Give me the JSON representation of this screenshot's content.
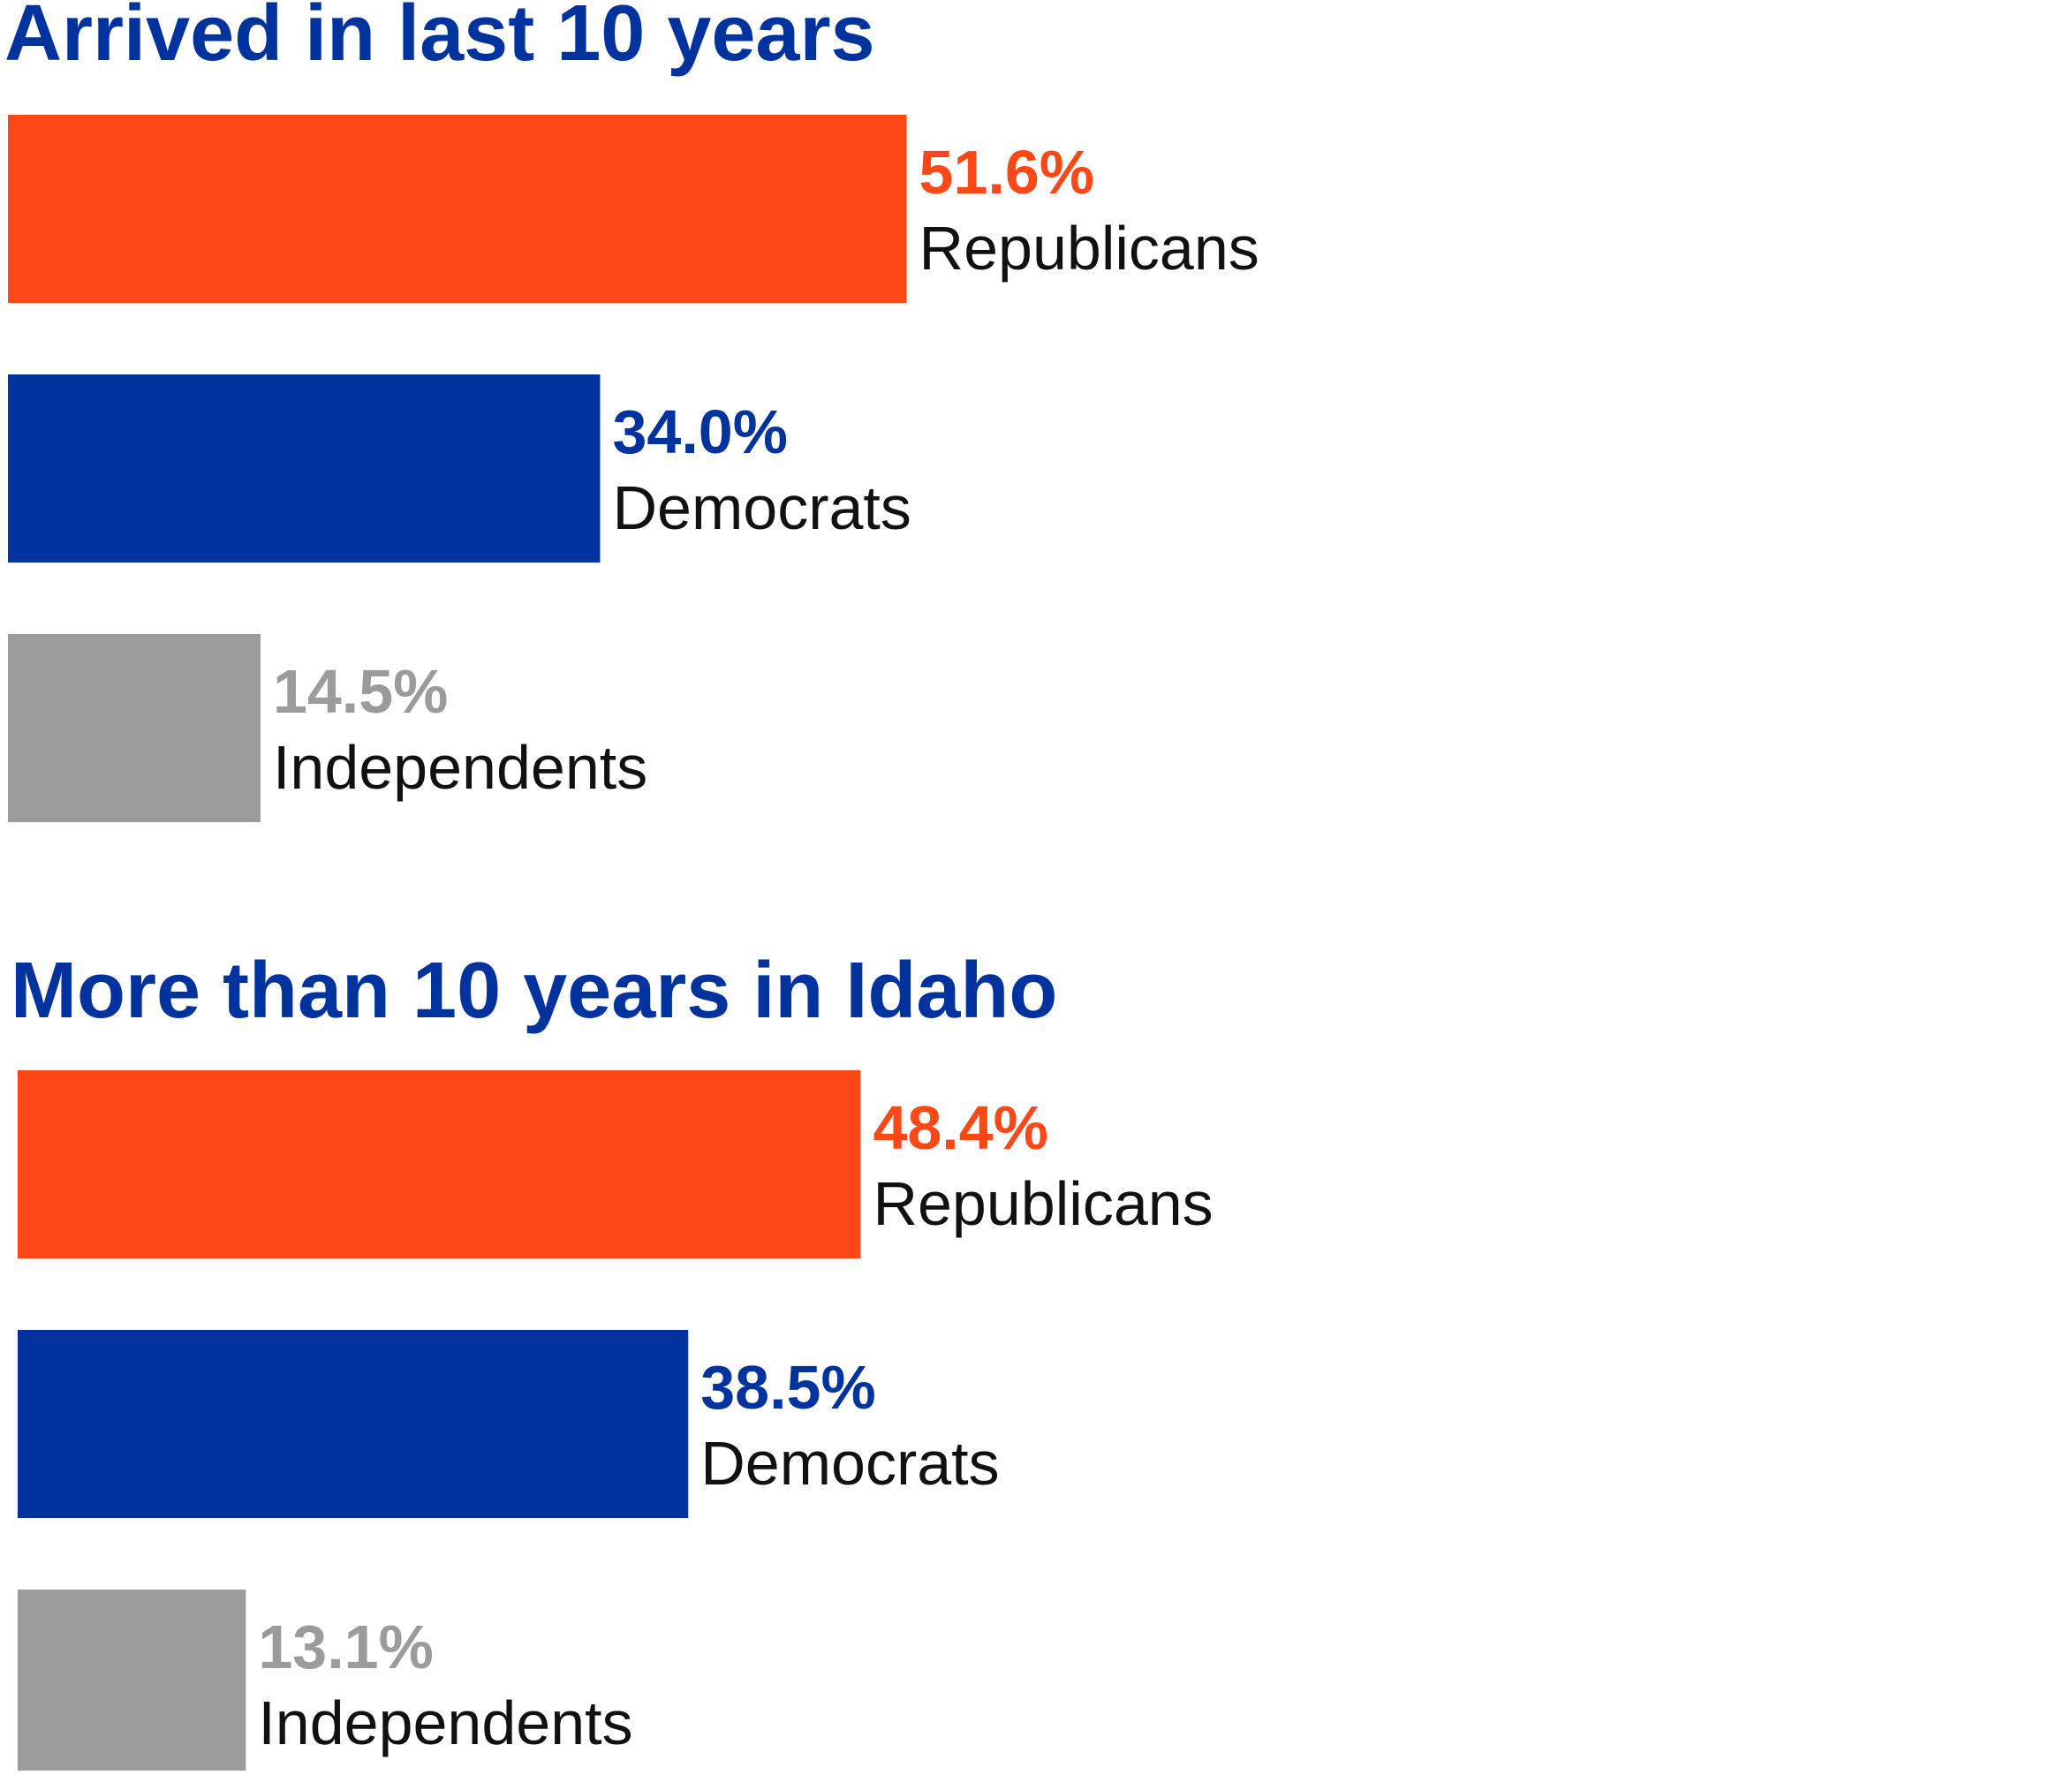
{
  "chart_data": [
    {
      "type": "bar",
      "orientation": "horizontal",
      "title": "Arrived in last 10 years",
      "categories": [
        "Republicans",
        "Democrats",
        "Independents"
      ],
      "values": [
        51.6,
        34.0,
        14.5
      ],
      "value_labels": [
        "51.6%",
        "34.0%",
        "14.5%"
      ],
      "colors": [
        "#FC4716",
        "#00339E",
        "#9B9B9B"
      ],
      "xlim": [
        0,
        100
      ],
      "grid": false,
      "axes_visible": false
    },
    {
      "type": "bar",
      "orientation": "horizontal",
      "title": "More than 10 years in Idaho",
      "categories": [
        "Republicans",
        "Democrats",
        "Independents"
      ],
      "values": [
        48.4,
        38.5,
        13.1
      ],
      "value_labels": [
        "48.4%",
        "38.5%",
        "13.1%"
      ],
      "colors": [
        "#FC4716",
        "#00339E",
        "#9B9B9B"
      ],
      "xlim": [
        0,
        100
      ],
      "grid": false,
      "axes_visible": false
    }
  ],
  "title_color": "#00339E"
}
